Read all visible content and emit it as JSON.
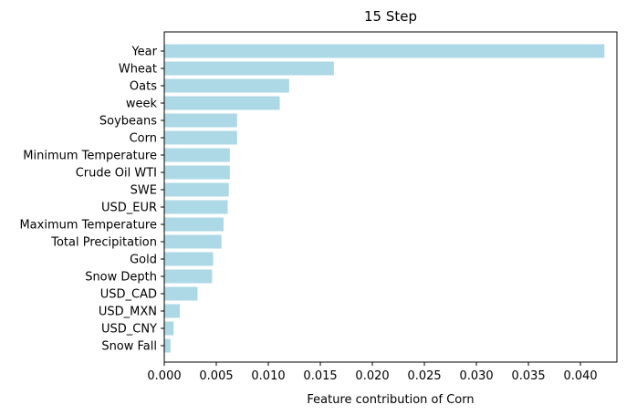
{
  "colors": {
    "bar": "#add8e6",
    "axis": "#000000",
    "background": "#ffffff"
  },
  "chart_data": {
    "type": "bar",
    "orientation": "horizontal",
    "title": "15 Step",
    "xlabel": "Feature contribution of Corn",
    "ylabel": "",
    "xlim": [
      0.0,
      0.0435
    ],
    "grid": false,
    "legend": "none",
    "x_ticks": [
      0.0,
      0.005,
      0.01,
      0.015,
      0.02,
      0.025,
      0.03,
      0.035,
      0.04
    ],
    "x_tick_labels": [
      "0.000",
      "0.005",
      "0.010",
      "0.015",
      "0.020",
      "0.025",
      "0.030",
      "0.035",
      "0.040"
    ],
    "categories": [
      "Year",
      "Wheat",
      "Oats",
      "week",
      "Soybeans",
      "Corn",
      "Minimum Temperature",
      "Crude Oil WTI",
      "SWE",
      "USD_EUR",
      "Maximum Temperature",
      "Total Precipitation",
      "Gold",
      "Snow Depth",
      "USD_CAD",
      "USD_MXN",
      "USD_CNY",
      "Snow Fall"
    ],
    "values": [
      0.0423,
      0.0163,
      0.012,
      0.0111,
      0.007,
      0.007,
      0.0063,
      0.0063,
      0.0062,
      0.0061,
      0.0057,
      0.0055,
      0.0047,
      0.0046,
      0.0032,
      0.0015,
      0.0009,
      0.0006
    ]
  }
}
